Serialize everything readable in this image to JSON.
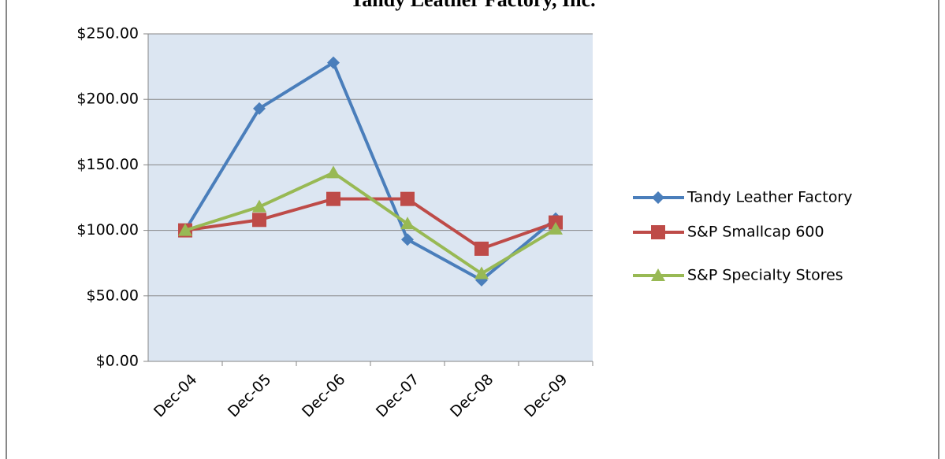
{
  "chart_data": {
    "type": "line",
    "title": "Tandy Leather Factory, Inc.",
    "categories": [
      "Dec-04",
      "Dec-05",
      "Dec-06",
      "Dec-07",
      "Dec-08",
      "Dec-09"
    ],
    "series": [
      {
        "name": "Tandy Leather Factory",
        "color": "#4a7ebb",
        "marker": "diamond",
        "values": [
          100,
          193,
          228,
          93,
          62,
          109
        ]
      },
      {
        "name": "S&P Smallcap 600",
        "color": "#be4b48",
        "marker": "square",
        "values": [
          100,
          108,
          124,
          124,
          86,
          106
        ]
      },
      {
        "name": "S&P Specialty Stores",
        "color": "#98b954",
        "marker": "triangle",
        "values": [
          100,
          118,
          144,
          105,
          67,
          101
        ]
      }
    ],
    "ylim": [
      0,
      250
    ],
    "yticks": [
      {
        "value": 0,
        "label": "$0.00"
      },
      {
        "value": 50,
        "label": "$50.00"
      },
      {
        "value": 100,
        "label": "$100.00"
      },
      {
        "value": 150,
        "label": "$150.00"
      },
      {
        "value": 200,
        "label": "$200.00"
      },
      {
        "value": 250,
        "label": "$250.00"
      }
    ],
    "grid": true,
    "legend": "right"
  }
}
